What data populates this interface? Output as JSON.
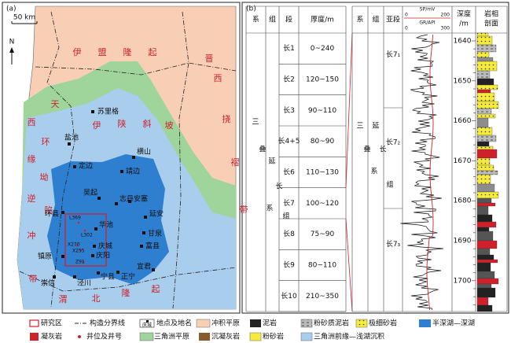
{
  "panel_a": {
    "label": "(a)",
    "scale": "50 km",
    "north": "N",
    "regions": [
      "伊盟隆起",
      "晋西挠褶带",
      "伊陕斜坡",
      "天环坳陷",
      "西缘逆冲带",
      "渭北隆起"
    ],
    "places": [
      "苏里格",
      "盐池",
      "定边",
      "横山",
      "靖边",
      "吴起",
      "志丹",
      "安塞",
      "延安",
      "环县",
      "华池",
      "甘泉",
      "庆城",
      "富县",
      "庆阳",
      "镇原",
      "宜君",
      "宁县",
      "正宁",
      "崇信",
      "泾川"
    ],
    "wells": [
      "L369",
      "L302",
      "X270",
      "X255",
      "Z91"
    ]
  },
  "panel_b": {
    "label": "(b)",
    "table": {
      "headers": [
        "系",
        "组",
        "段",
        "厚度/m"
      ],
      "system": "三叠系",
      "formation": "延长组",
      "members": [
        "长1",
        "长2",
        "长3",
        "长4+5",
        "长6",
        "长7",
        "长8",
        "长9",
        "长10"
      ],
      "thickness": [
        "0~240",
        "120~150",
        "90~110",
        "80~90",
        "110~130",
        "100~120",
        "75~90",
        "80~110",
        "210~350"
      ]
    },
    "log": {
      "headers": [
        "系",
        "组",
        "亚段"
      ],
      "sp_label": "SP/mV",
      "sp_range": [
        0,
        200
      ],
      "gr_label": "GR/API",
      "gr_range": [
        0,
        300
      ],
      "depth_header": [
        "深度",
        "/m"
      ],
      "lith_header": [
        "岩相",
        "剖面"
      ],
      "system": "三叠系",
      "formation": "延长组",
      "sub_members": [
        "长7₁",
        "长7₂",
        "长7₃"
      ],
      "depths": [
        1640,
        1650,
        1660,
        1670,
        1680,
        1690,
        1700
      ]
    }
  },
  "legend": {
    "place_icon_text": "庆城",
    "items": [
      "研究区",
      "构造分界线",
      "地点及地名",
      "冲积平原",
      "泥岩",
      "粉砂质泥岩",
      "极细砂岩",
      "半深湖—深湖",
      "凝灰岩",
      "井位及井号",
      "三角洲平原",
      "沉凝灰岩",
      "粉砂岩",
      "三角洲前缘—浅湖沉积"
    ]
  }
}
